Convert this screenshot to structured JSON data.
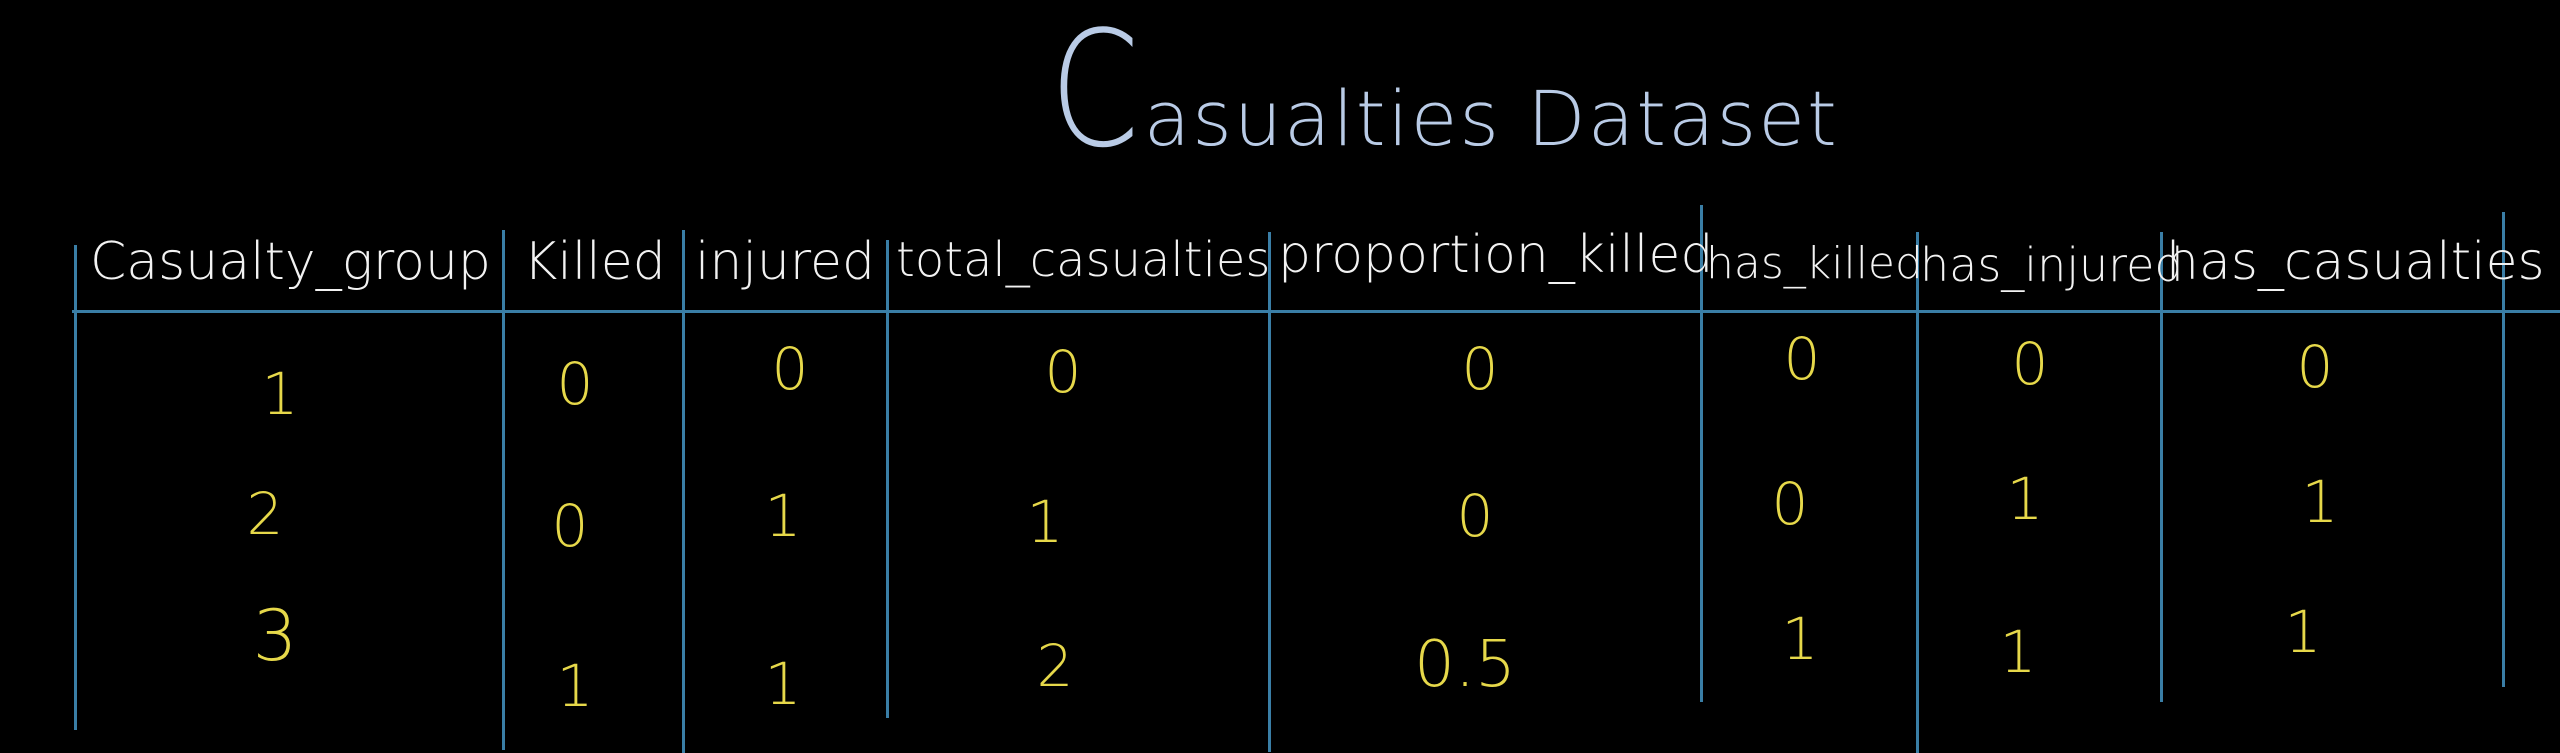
{
  "title": "Casualties Dataset",
  "title_first_letter": "C",
  "title_rest": "asualties Dataset",
  "colors": {
    "background": "#000000",
    "title": "#b9cbe6",
    "header_text": "#f2f2f2",
    "cell_text": "#e6d84a",
    "grid_lines": "#3a7ea6"
  },
  "table": {
    "columns": [
      "Casualty_group",
      "Killed",
      "injured",
      "total_casualties",
      "proportion_killed",
      "has_killed",
      "has_injured",
      "has_casualties"
    ],
    "rows": [
      [
        "1",
        "0",
        "0",
        "0",
        "0",
        "0",
        "0",
        "0"
      ],
      [
        "2",
        "0",
        "1",
        "1",
        "0",
        "0",
        "1",
        "1"
      ],
      [
        "3",
        "1",
        "1",
        "2",
        "0.5",
        "1",
        "1",
        "1"
      ]
    ]
  }
}
